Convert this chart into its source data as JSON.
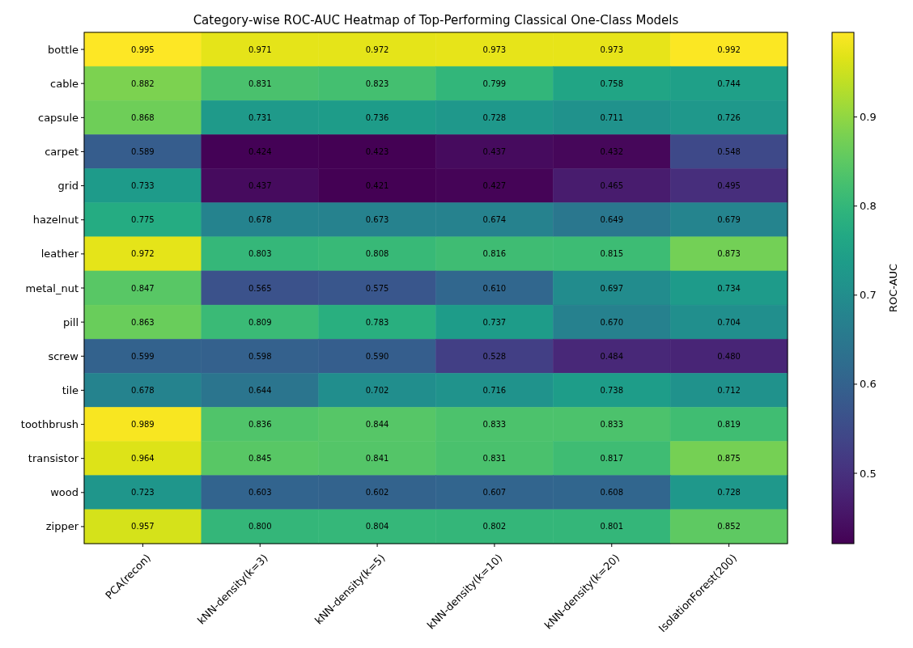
{
  "chart_data": {
    "type": "heatmap",
    "title": "Category-wise ROC-AUC Heatmap of Top-Performing Classical One-Class Models",
    "clabel": "ROC-AUC",
    "categories": [
      "PCA(recon)",
      "kNN-density(k=3)",
      "kNN-density(k=5)",
      "kNN-density(k=10)",
      "kNN-density(k=20)",
      "IsolationForest(200)"
    ],
    "y_categories": [
      "bottle",
      "cable",
      "capsule",
      "carpet",
      "grid",
      "hazelnut",
      "leather",
      "metal_nut",
      "pill",
      "screw",
      "tile",
      "toothbrush",
      "transistor",
      "wood",
      "zipper"
    ],
    "cells": [
      [
        0.995,
        0.971,
        0.972,
        0.973,
        0.973,
        0.992
      ],
      [
        0.882,
        0.831,
        0.823,
        0.799,
        0.758,
        0.744
      ],
      [
        0.868,
        0.731,
        0.736,
        0.728,
        0.711,
        0.726
      ],
      [
        0.589,
        0.424,
        0.423,
        0.437,
        0.432,
        0.548
      ],
      [
        0.733,
        0.437,
        0.421,
        0.427,
        0.465,
        0.495
      ],
      [
        0.775,
        0.678,
        0.673,
        0.674,
        0.649,
        0.679
      ],
      [
        0.972,
        0.803,
        0.808,
        0.816,
        0.815,
        0.873
      ],
      [
        0.847,
        0.565,
        0.575,
        0.61,
        0.697,
        0.734
      ],
      [
        0.863,
        0.809,
        0.783,
        0.737,
        0.67,
        0.704
      ],
      [
        0.599,
        0.598,
        0.59,
        0.528,
        0.484,
        0.48
      ],
      [
        0.678,
        0.644,
        0.702,
        0.716,
        0.738,
        0.712
      ],
      [
        0.989,
        0.836,
        0.844,
        0.833,
        0.833,
        0.819
      ],
      [
        0.964,
        0.845,
        0.841,
        0.831,
        0.817,
        0.875
      ],
      [
        0.723,
        0.603,
        0.602,
        0.607,
        0.608,
        0.728
      ],
      [
        0.957,
        0.8,
        0.804,
        0.802,
        0.801,
        0.852
      ]
    ],
    "cell_labels": [
      [
        "0.995",
        "0.971",
        "0.972",
        "0.973",
        "0.973",
        "0.992"
      ],
      [
        "0.882",
        "0.831",
        "0.823",
        "0.799",
        "0.758",
        "0.744"
      ],
      [
        "0.868",
        "0.731",
        "0.736",
        "0.728",
        "0.711",
        "0.726"
      ],
      [
        "0.589",
        "0.424",
        "0.423",
        "0.437",
        "0.432",
        "0.548"
      ],
      [
        "0.733",
        "0.437",
        "0.421",
        "0.427",
        "0.465",
        "0.495"
      ],
      [
        "0.775",
        "0.678",
        "0.673",
        "0.674",
        "0.649",
        "0.679"
      ],
      [
        "0.972",
        "0.803",
        "0.808",
        "0.816",
        "0.815",
        "0.873"
      ],
      [
        "0.847",
        "0.565",
        "0.575",
        "0.610",
        "0.697",
        "0.734"
      ],
      [
        "0.863",
        "0.809",
        "0.783",
        "0.737",
        "0.670",
        "0.704"
      ],
      [
        "0.599",
        "0.598",
        "0.590",
        "0.528",
        "0.484",
        "0.480"
      ],
      [
        "0.678",
        "0.644",
        "0.702",
        "0.716",
        "0.738",
        "0.712"
      ],
      [
        "0.989",
        "0.836",
        "0.844",
        "0.833",
        "0.833",
        "0.819"
      ],
      [
        "0.964",
        "0.845",
        "0.841",
        "0.831",
        "0.817",
        "0.875"
      ],
      [
        "0.723",
        "0.603",
        "0.602",
        "0.607",
        "0.608",
        "0.728"
      ],
      [
        "0.957",
        "0.800",
        "0.804",
        "0.802",
        "0.801",
        "0.852"
      ]
    ],
    "clim": [
      0.421,
      0.995
    ],
    "cticks": [
      0.5,
      0.6,
      0.7,
      0.8,
      0.9
    ]
  }
}
